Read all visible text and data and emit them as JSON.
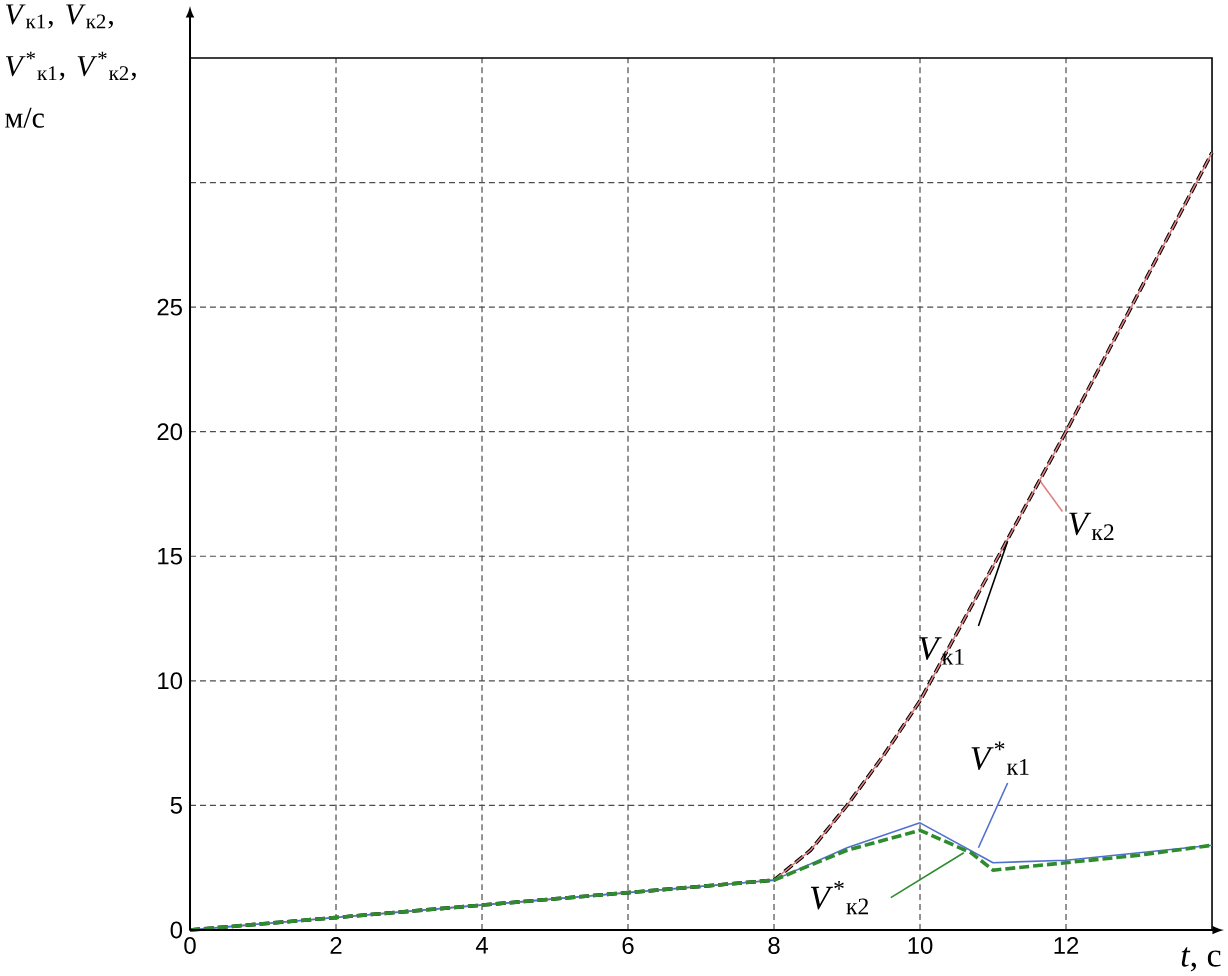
{
  "chart_data": {
    "type": "line",
    "ylabel": "*V*$_{к1}$, *V*$_{к2}$, *V*$^{*}$$_{к1}$, *V*$^{*}$$_{к2}$, м/с",
    "xlabel": "*t*, с",
    "xlim": [
      0,
      14
    ],
    "ylim": [
      0,
      35
    ],
    "xticks": [
      0,
      2,
      4,
      6,
      8,
      10,
      12
    ],
    "yticks": [
      0,
      5,
      10,
      15,
      20,
      25,
      {
        "value": 30,
        "label": null
      }
    ],
    "grid": true,
    "series": [
      {
        "name": "*V*$_{к1}$",
        "color": "#000000",
        "line_style": "dashed",
        "x": [
          0,
          8,
          8.5,
          9,
          9.5,
          10,
          11,
          12,
          13,
          14
        ],
        "values": [
          0,
          2,
          3.2,
          5,
          7,
          9.2,
          14.6,
          20,
          25.6,
          31.2
        ]
      },
      {
        "name": "*V*$_{к2}$",
        "color": "#e08080",
        "line_style": "solid",
        "x": [
          0,
          8,
          8.5,
          9,
          9.5,
          10,
          11,
          12,
          13,
          14
        ],
        "values": [
          0,
          2,
          3.2,
          5,
          7,
          9.2,
          14.6,
          20,
          25.6,
          31.2
        ]
      },
      {
        "name": "*V*$^{*}$$_{к1}$",
        "color": "#5070d0",
        "line_style": "solid",
        "x": [
          0,
          8,
          9,
          10,
          10.5,
          11,
          12,
          13,
          14
        ],
        "values": [
          0,
          2,
          3.3,
          4.3,
          3.5,
          2.7,
          2.8,
          3.1,
          3.4
        ]
      },
      {
        "name": "*V*$^{*}$$_{к2}$",
        "color": "#2e8b2e",
        "line_style": "dashed",
        "x": [
          0,
          8,
          9,
          10,
          10.7,
          11,
          12,
          13,
          14
        ],
        "values": [
          0,
          2,
          3.2,
          4,
          3.1,
          2.4,
          2.7,
          3.0,
          3.4
        ]
      }
    ]
  }
}
